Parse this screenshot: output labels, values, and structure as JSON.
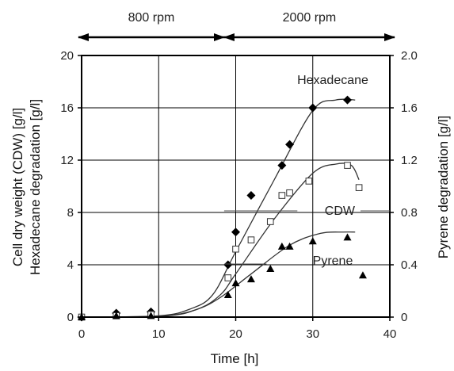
{
  "chart_data": {
    "type": "scatter",
    "xlabel": "Time [h]",
    "ylabel_left_line1": "Cell dry weight (CDW) [g/l]",
    "ylabel_left_line2": "Hexadecane degradation [g/l]",
    "ylabel_right": "Pyrene degradation [g/l]",
    "xlim": [
      0,
      40
    ],
    "ylim_left": [
      0,
      20
    ],
    "ylim_right": [
      0,
      2.0
    ],
    "xticks": [
      "0",
      "10",
      "20",
      "30",
      "40"
    ],
    "yticks_left": [
      "0",
      "4",
      "8",
      "12",
      "16",
      "20"
    ],
    "yticks_right": [
      "0",
      "0.4",
      "0.8",
      "1.2",
      "1.6",
      "2.0"
    ],
    "grid": true,
    "phases": [
      {
        "label": "800 rpm",
        "from": 0,
        "to": 18.5
      },
      {
        "label": "2000 rpm",
        "from": 18.5,
        "to": 40
      }
    ],
    "series": [
      {
        "name": "Hexadecane",
        "axis": "left",
        "marker": "diamond",
        "points": [
          [
            0,
            0
          ],
          [
            4.5,
            0.3
          ],
          [
            9,
            0.4
          ],
          [
            19,
            4.0
          ],
          [
            20,
            6.5
          ],
          [
            22,
            9.3
          ],
          [
            26,
            11.6
          ],
          [
            27,
            13.2
          ],
          [
            30,
            16.0
          ],
          [
            34.5,
            16.6
          ]
        ],
        "fit": [
          [
            0,
            0
          ],
          [
            10,
            0.1
          ],
          [
            14,
            0.6
          ],
          [
            17,
            1.7
          ],
          [
            20,
            5.0
          ],
          [
            25,
            10.5
          ],
          [
            30,
            15.8
          ],
          [
            33,
            16.6
          ],
          [
            35.5,
            16.6
          ]
        ]
      },
      {
        "name": "CDW",
        "axis": "left",
        "marker": "square",
        "points": [
          [
            0,
            0
          ],
          [
            4.5,
            0.1
          ],
          [
            9,
            0.2
          ],
          [
            19,
            3.0
          ],
          [
            20,
            5.2
          ],
          [
            22,
            5.9
          ],
          [
            24.5,
            7.3
          ],
          [
            26,
            9.3
          ],
          [
            27,
            9.5
          ],
          [
            29.5,
            10.4
          ],
          [
            34.5,
            11.6
          ],
          [
            36,
            9.9
          ]
        ],
        "fit": [
          [
            0,
            0
          ],
          [
            10,
            0.05
          ],
          [
            15,
            0.6
          ],
          [
            18,
            1.7
          ],
          [
            20,
            3.3
          ],
          [
            25,
            7.5
          ],
          [
            30,
            11.0
          ],
          [
            33,
            11.7
          ],
          [
            35,
            11.6
          ],
          [
            36,
            10.5
          ]
        ]
      },
      {
        "name": "Pyrene",
        "axis": "right",
        "marker": "triangle",
        "points": [
          [
            0,
            0
          ],
          [
            4.5,
            0.01
          ],
          [
            9,
            0.01
          ],
          [
            19,
            0.17
          ],
          [
            20,
            0.26
          ],
          [
            22,
            0.29
          ],
          [
            24.5,
            0.37
          ],
          [
            26,
            0.54
          ],
          [
            27,
            0.54
          ],
          [
            30,
            0.58
          ],
          [
            34.5,
            0.61
          ],
          [
            36.5,
            0.32
          ]
        ],
        "fit": [
          [
            0,
            0
          ],
          [
            11,
            0.01
          ],
          [
            15,
            0.06
          ],
          [
            18,
            0.15
          ],
          [
            22,
            0.33
          ],
          [
            27,
            0.55
          ],
          [
            31,
            0.64
          ],
          [
            34,
            0.65
          ],
          [
            35.5,
            0.65
          ]
        ]
      }
    ]
  }
}
